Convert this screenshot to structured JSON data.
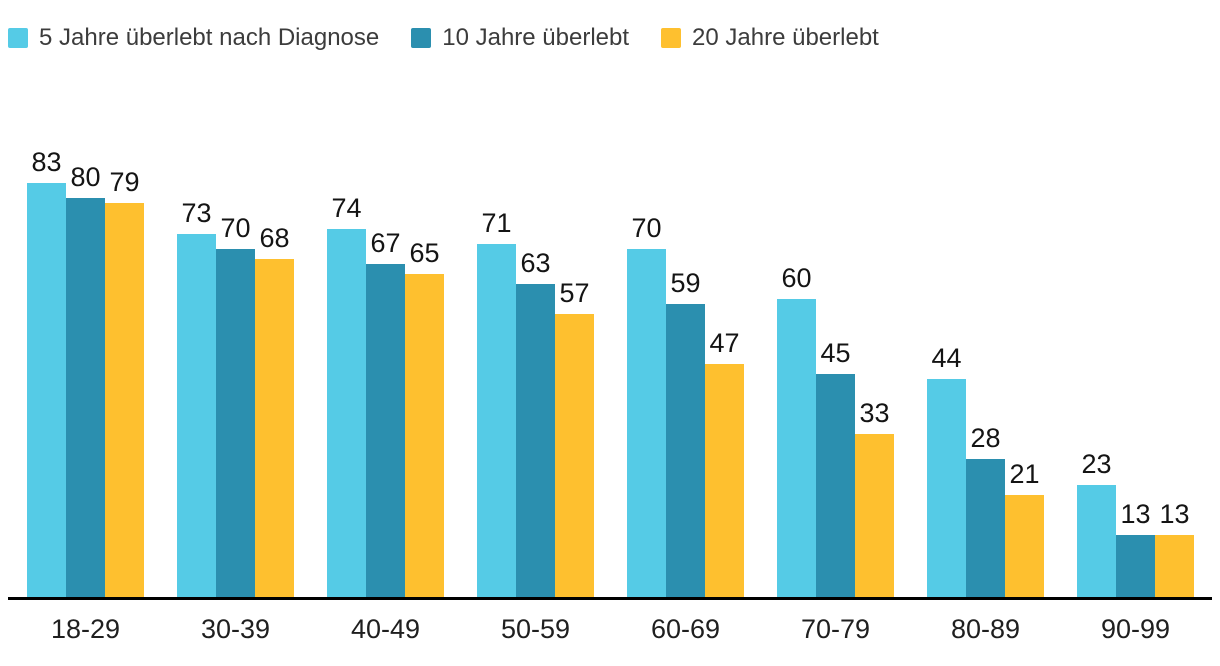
{
  "legend": {
    "items": [
      {
        "label": "5 Jahre überlebt nach Diagnose",
        "color": "#55CBE6",
        "icon": "legend-swatch-square"
      },
      {
        "label": "10 Jahre überlebt",
        "color": "#2B8FAF",
        "icon": "legend-swatch-square"
      },
      {
        "label": "20 Jahre überlebt",
        "color": "#FEC02F",
        "icon": "legend-swatch-square"
      }
    ]
  },
  "chart_data": {
    "type": "bar",
    "title": "",
    "xlabel": "",
    "ylabel": "",
    "categories": [
      "18-29",
      "30-39",
      "40-49",
      "50-59",
      "60-69",
      "70-79",
      "80-89",
      "90-99"
    ],
    "series": [
      {
        "name": "5 Jahre überlebt nach Diagnose",
        "color": "#55CBE6",
        "values": [
          83,
          73,
          74,
          71,
          70,
          60,
          44,
          23
        ]
      },
      {
        "name": "10 Jahre überlebt",
        "color": "#2B8FAF",
        "values": [
          80,
          70,
          67,
          63,
          59,
          45,
          28,
          13
        ]
      },
      {
        "name": "20 Jahre überlebt",
        "color": "#FEC02F",
        "values": [
          79,
          68,
          65,
          57,
          47,
          33,
          21,
          13
        ]
      }
    ],
    "ylim": [
      0,
      100
    ],
    "grid": false,
    "y_axis_visible": false,
    "legend_position": "top-left",
    "value_labels": true,
    "axis_line_color": "#000000"
  }
}
